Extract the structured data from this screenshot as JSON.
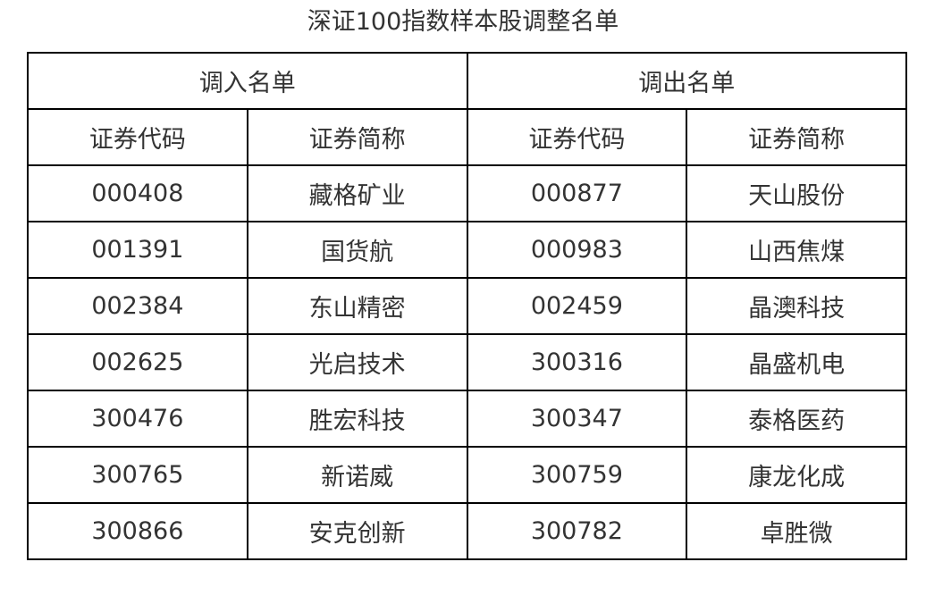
{
  "title": "深证100指数样本股调整名单",
  "groups": {
    "in": "调入名单",
    "out": "调出名单"
  },
  "columns": [
    "证券代码",
    "证券简称",
    "证券代码",
    "证券简称"
  ],
  "rows": [
    [
      "000408",
      "藏格矿业",
      "000877",
      "天山股份"
    ],
    [
      "001391",
      "国货航",
      "000983",
      "山西焦煤"
    ],
    [
      "002384",
      "东山精密",
      "002459",
      "晶澳科技"
    ],
    [
      "002625",
      "光启技术",
      "300316",
      "晶盛机电"
    ],
    [
      "300476",
      "胜宏科技",
      "300347",
      "泰格医药"
    ],
    [
      "300765",
      "新诺威",
      "300759",
      "康龙化成"
    ],
    [
      "300866",
      "安克创新",
      "300782",
      "卓胜微"
    ]
  ]
}
